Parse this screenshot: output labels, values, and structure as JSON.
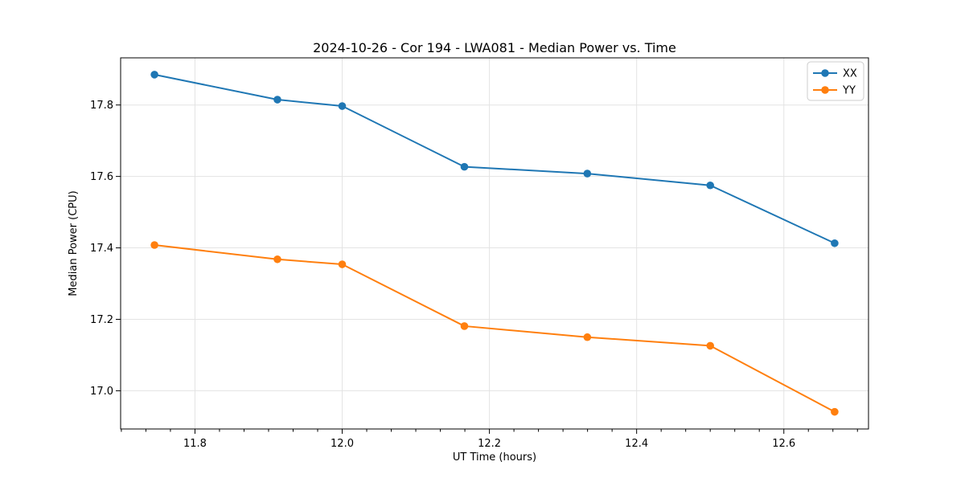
{
  "figure": {
    "background": "#ffffff"
  },
  "chart_data": {
    "type": "line",
    "title": "2024-10-26 - Cor 194 - LWA081 - Median Power vs. Time",
    "xlabel": "UT Time (hours)",
    "ylabel": "Median Power (CPU)",
    "xlim": [
      11.699,
      12.715
    ],
    "ylim": [
      16.893,
      17.932
    ],
    "xticks": [
      11.8,
      12.0,
      12.2,
      12.4,
      12.6
    ],
    "yticks": [
      17.0,
      17.2,
      17.4,
      17.6,
      17.8
    ],
    "minor_xtick_step": 0.0333333,
    "grid": true,
    "grid_color": "#e3e3e3",
    "legend_position": "upper right",
    "marker": "circle",
    "x": [
      11.745,
      11.912,
      12.0,
      12.166,
      12.333,
      12.5,
      12.669
    ],
    "series": [
      {
        "name": "XX",
        "color": "#1f77b4",
        "values": [
          17.885,
          17.815,
          17.797,
          17.627,
          17.608,
          17.575,
          17.413
        ]
      },
      {
        "name": "YY",
        "color": "#ff7f0e",
        "values": [
          17.408,
          17.368,
          17.354,
          17.181,
          17.15,
          17.126,
          16.941
        ]
      }
    ]
  }
}
